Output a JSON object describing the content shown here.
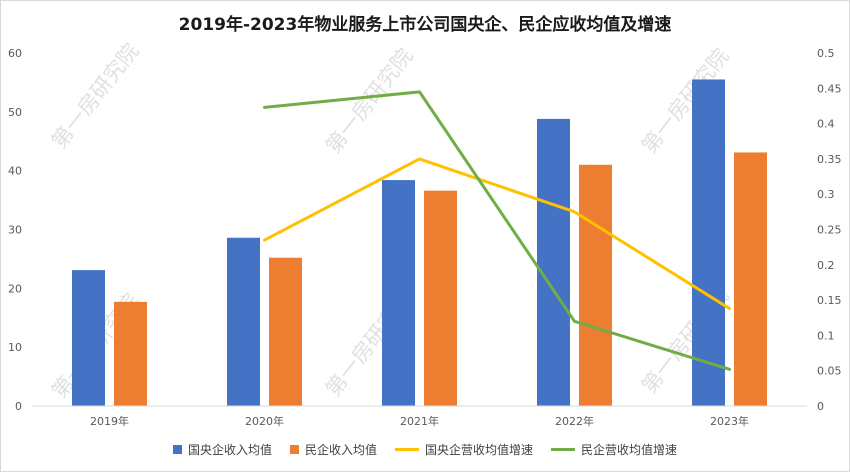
{
  "chart_data": {
    "type": "bar",
    "title": "2019年-2023年物业服务上市公司国央企、民企应收均值及增速",
    "categories": [
      "2019年",
      "2020年",
      "2021年",
      "2022年",
      "2023年"
    ],
    "y_left": {
      "min": 0,
      "max": 60,
      "step": 10,
      "ticks": [
        "0",
        "10",
        "20",
        "30",
        "40",
        "50",
        "60"
      ]
    },
    "y_right": {
      "min": 0,
      "max": 0.5,
      "step": 0.05,
      "ticks": [
        "0",
        "0.05",
        "0.1",
        "0.15",
        "0.2",
        "0.25",
        "0.3",
        "0.35",
        "0.4",
        "0.45",
        "0.5"
      ]
    },
    "grid": false,
    "legend_position": "bottom",
    "series": [
      {
        "name": "国央企收入均值",
        "kind": "bar",
        "axis": "left",
        "color": "#4472c4",
        "values": [
          23.1,
          28.6,
          38.4,
          48.8,
          55.5
        ]
      },
      {
        "name": "民企收入均值",
        "kind": "bar",
        "axis": "left",
        "color": "#ed7d31",
        "values": [
          17.7,
          25.2,
          36.6,
          41.0,
          43.1
        ]
      },
      {
        "name": "国央企营收均值增速",
        "kind": "line",
        "axis": "right",
        "color": "#ffc000",
        "values": [
          null,
          0.235,
          0.35,
          0.275,
          0.138
        ]
      },
      {
        "name": "民企营收均值增速",
        "kind": "line",
        "axis": "right",
        "color": "#70ad47",
        "values": [
          null,
          0.423,
          0.445,
          0.12,
          0.052
        ]
      }
    ]
  },
  "watermark": {
    "text": "第一房研究院"
  }
}
